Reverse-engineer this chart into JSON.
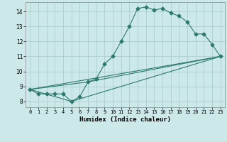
{
  "xlabel": "Humidex (Indice chaleur)",
  "bg_color": "#cce8e8",
  "grid_color": "#aacece",
  "line_color": "#2d7a6a",
  "xlim": [
    -0.5,
    23.5
  ],
  "ylim": [
    7.6,
    14.6
  ],
  "xticks": [
    0,
    1,
    2,
    3,
    4,
    5,
    6,
    7,
    8,
    9,
    10,
    11,
    12,
    13,
    14,
    15,
    16,
    17,
    18,
    19,
    20,
    21,
    22,
    23
  ],
  "yticks": [
    8,
    9,
    10,
    11,
    12,
    13,
    14
  ],
  "curve1_x": [
    0,
    1,
    2,
    3,
    4,
    5,
    6,
    7,
    8,
    9,
    10,
    11,
    12,
    13,
    14,
    15,
    16,
    17,
    18,
    19,
    20,
    21,
    22,
    23
  ],
  "curve1_y": [
    8.8,
    8.5,
    8.5,
    8.5,
    8.5,
    8.0,
    8.3,
    9.3,
    9.5,
    10.5,
    11.0,
    12.0,
    13.0,
    14.2,
    14.3,
    14.1,
    14.2,
    13.9,
    13.7,
    13.3,
    12.5,
    12.5,
    11.8,
    11.0
  ],
  "curve2_x": [
    0,
    23
  ],
  "curve2_y": [
    8.8,
    11.0
  ],
  "curve3_x": [
    0,
    7,
    23
  ],
  "curve3_y": [
    8.8,
    9.3,
    11.0
  ],
  "curve4_x": [
    0,
    5,
    23
  ],
  "curve4_y": [
    8.8,
    8.0,
    11.0
  ],
  "xlabel_fontsize": 6.5,
  "xlabel_fontweight": "bold",
  "tick_fontsize": 5.0,
  "ytick_fontsize": 5.5,
  "lw": 0.8,
  "ms": 2.5
}
